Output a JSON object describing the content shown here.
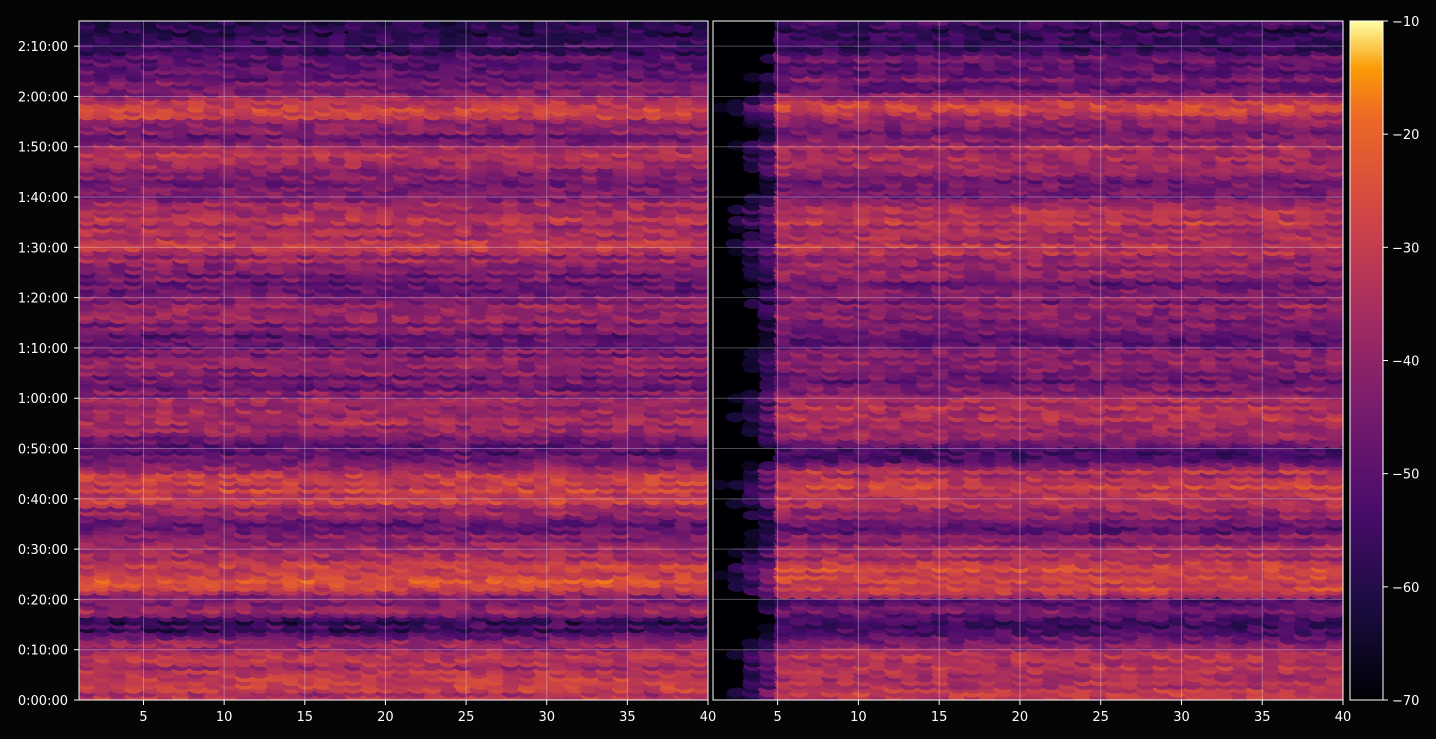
{
  "chart_data": {
    "type": "heatmap",
    "title": "",
    "xlabel": "",
    "ylabel": "",
    "grid": true,
    "panels": [
      {
        "name": "",
        "xlim": [
          1,
          40
        ],
        "x_ticks": [
          "5",
          "10",
          "15",
          "20",
          "25",
          "30",
          "35",
          "40"
        ]
      },
      {
        "name": "",
        "xlim": [
          1,
          40
        ],
        "x_ticks": [
          "5",
          "10",
          "15",
          "20",
          "25",
          "30",
          "35",
          "40"
        ]
      }
    ],
    "y_axis": {
      "ylim_seconds": [
        0,
        8100
      ],
      "ticks": [
        "0:00:00",
        "0:10:00",
        "0:20:00",
        "0:30:00",
        "0:40:00",
        "0:50:00",
        "1:00:00",
        "1:10:00",
        "1:20:00",
        "1:30:00",
        "1:40:00",
        "1:50:00",
        "2:00:00",
        "2:10:00"
      ]
    },
    "colorbar": {
      "colormap": "inferno",
      "range": [
        -70,
        -10
      ],
      "ticks": [
        "−10",
        "−20",
        "−30",
        "−40",
        "−50",
        "−60",
        "−70"
      ]
    },
    "intensity_profile": {
      "time_minutes": [
        0,
        2,
        4,
        6,
        8,
        10,
        12,
        14,
        16,
        18,
        20,
        22,
        24,
        26,
        28,
        30,
        32,
        34,
        36,
        38,
        40,
        42,
        44,
        46,
        48,
        50,
        52,
        54,
        56,
        58,
        60,
        62,
        64,
        66,
        68,
        70,
        72,
        74,
        76,
        78,
        80,
        82,
        84,
        86,
        88,
        90,
        92,
        94,
        96,
        98,
        100,
        102,
        104,
        106,
        108,
        110,
        112,
        114,
        116,
        118,
        120,
        122,
        124,
        126,
        128,
        130,
        132
      ],
      "level_dB": [
        -36,
        -33,
        -33,
        -35,
        -36,
        -34,
        -42,
        -55,
        -58,
        -40,
        -50,
        -30,
        -27,
        -27,
        -33,
        -37,
        -40,
        -50,
        -45,
        -38,
        -30,
        -29,
        -32,
        -35,
        -48,
        -52,
        -44,
        -36,
        -33,
        -36,
        -38,
        -45,
        -46,
        -40,
        -42,
        -46,
        -50,
        -44,
        -42,
        -38,
        -45,
        -48,
        -45,
        -42,
        -38,
        -34,
        -33,
        -35,
        -30,
        -33,
        -44,
        -46,
        -42,
        -38,
        -33,
        -35,
        -46,
        -40,
        -33,
        -30,
        -36,
        -48,
        -45,
        -50,
        -50,
        -55,
        -58
      ]
    },
    "notes": ""
  }
}
